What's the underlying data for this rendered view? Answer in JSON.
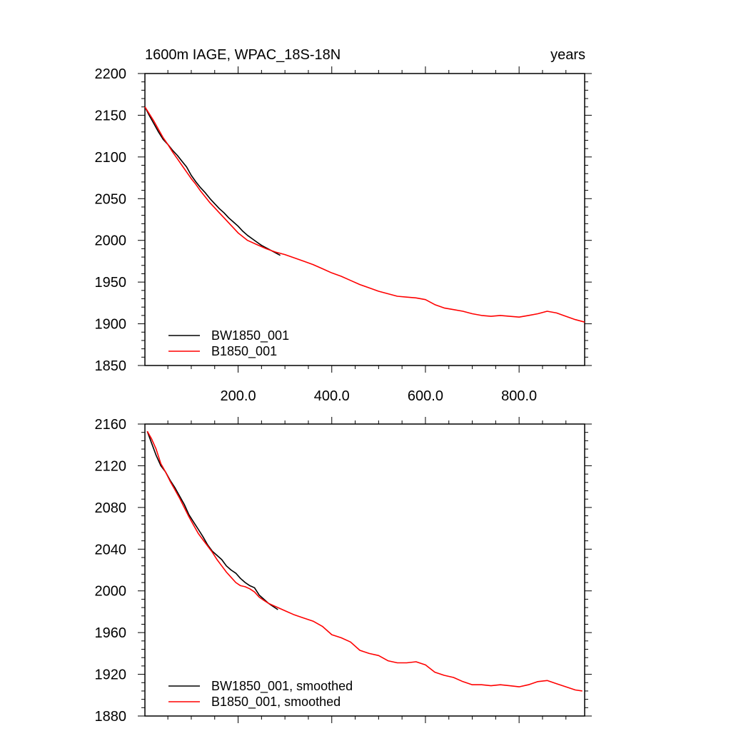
{
  "chart_data": [
    {
      "type": "line",
      "title": "1600m IAGE, WPAC_18S-18N",
      "units": "years",
      "xlabel": "",
      "ylabel": "",
      "xlim": [
        1,
        940
      ],
      "ylim": [
        1850,
        2200
      ],
      "y_ticks": [
        1850,
        1900,
        1950,
        2000,
        2050,
        2100,
        2150,
        2200
      ],
      "x_ticks": [
        200,
        400,
        600,
        800
      ],
      "x_tick_labels": [
        "200.0",
        "400.0",
        "600.0",
        "800.0"
      ],
      "grid": false,
      "legend_position": "bottom-left",
      "series": [
        {
          "name": "BW1850_001",
          "color": "#000000",
          "x": [
            1,
            10,
            20,
            30,
            40,
            50,
            60,
            70,
            80,
            90,
            100,
            110,
            120,
            130,
            140,
            150,
            160,
            170,
            180,
            190,
            200,
            210,
            220,
            230,
            240,
            250,
            260,
            270,
            280,
            290
          ],
          "y": [
            2160,
            2150,
            2140,
            2130,
            2121,
            2115,
            2108,
            2102,
            2095,
            2088,
            2078,
            2070,
            2063,
            2057,
            2050,
            2044,
            2038,
            2033,
            2027,
            2022,
            2017,
            2011,
            2006,
            2002,
            1998,
            1994,
            1991,
            1988,
            1985,
            1982
          ]
        },
        {
          "name": "B1850_001",
          "color": "#ff0000",
          "x": [
            1,
            10,
            20,
            30,
            40,
            50,
            60,
            70,
            80,
            90,
            100,
            110,
            120,
            130,
            140,
            150,
            160,
            170,
            180,
            190,
            200,
            220,
            240,
            260,
            280,
            300,
            320,
            340,
            360,
            380,
            400,
            420,
            440,
            460,
            480,
            500,
            520,
            540,
            560,
            580,
            600,
            620,
            640,
            660,
            680,
            700,
            720,
            740,
            760,
            780,
            800,
            820,
            840,
            860,
            880,
            900,
            920,
            940
          ],
          "y": [
            2160,
            2152,
            2143,
            2133,
            2123,
            2115,
            2106,
            2098,
            2090,
            2082,
            2074,
            2067,
            2059,
            2052,
            2045,
            2039,
            2033,
            2027,
            2021,
            2015,
            2009,
            2000,
            1995,
            1990,
            1986,
            1983,
            1979,
            1975,
            1971,
            1966,
            1961,
            1957,
            1952,
            1947,
            1943,
            1939,
            1936,
            1933,
            1932,
            1931,
            1929,
            1923,
            1919,
            1917,
            1915,
            1912,
            1910,
            1909,
            1910,
            1909,
            1908,
            1910,
            1912,
            1915,
            1913,
            1909,
            1905,
            1902
          ]
        }
      ]
    },
    {
      "type": "line",
      "title": "",
      "xlabel": "",
      "ylabel": "",
      "xlim": [
        1,
        940
      ],
      "ylim": [
        1880,
        2160
      ],
      "y_ticks": [
        1880,
        1920,
        1960,
        2000,
        2040,
        2080,
        2120,
        2160
      ],
      "x_ticks": [
        200,
        400,
        600,
        800
      ],
      "x_tick_labels": [],
      "grid": false,
      "legend_position": "bottom-left",
      "series": [
        {
          "name": "BW1850_001, smoothed",
          "color": "#000000",
          "x": [
            6,
            15,
            25,
            35,
            45,
            55,
            65,
            75,
            85,
            95,
            105,
            115,
            125,
            135,
            145,
            155,
            165,
            175,
            185,
            195,
            205,
            215,
            225,
            235,
            245,
            255,
            265,
            275,
            285
          ],
          "y": [
            2153,
            2142,
            2130,
            2120,
            2114,
            2106,
            2099,
            2091,
            2083,
            2073,
            2066,
            2059,
            2052,
            2044,
            2038,
            2034,
            2030,
            2024,
            2020,
            2017,
            2012,
            2008,
            2005,
            2003,
            1996,
            1992,
            1988,
            1985,
            1982
          ]
        },
        {
          "name": "B1850_001, smoothed",
          "color": "#ff0000",
          "x": [
            6,
            15,
            25,
            35,
            45,
            55,
            65,
            75,
            85,
            95,
            105,
            115,
            125,
            135,
            145,
            155,
            165,
            175,
            185,
            195,
            205,
            215,
            225,
            235,
            245,
            255,
            265,
            275,
            285,
            300,
            320,
            340,
            360,
            380,
            400,
            420,
            440,
            460,
            480,
            500,
            520,
            540,
            560,
            580,
            600,
            620,
            640,
            660,
            680,
            700,
            720,
            740,
            760,
            780,
            800,
            820,
            840,
            860,
            880,
            900,
            920,
            935
          ],
          "y": [
            2153,
            2146,
            2136,
            2122,
            2114,
            2105,
            2097,
            2089,
            2080,
            2071,
            2063,
            2055,
            2049,
            2043,
            2037,
            2030,
            2024,
            2018,
            2013,
            2008,
            2005,
            2004,
            2002,
            1999,
            1994,
            1991,
            1988,
            1986,
            1984,
            1981,
            1977,
            1974,
            1971,
            1966,
            1958,
            1955,
            1951,
            1943,
            1940,
            1938,
            1933,
            1931,
            1931,
            1932,
            1929,
            1922,
            1919,
            1917,
            1913,
            1910,
            1910,
            1909,
            1910,
            1909,
            1908,
            1910,
            1913,
            1914,
            1911,
            1908,
            1905,
            1904
          ]
        }
      ]
    }
  ]
}
